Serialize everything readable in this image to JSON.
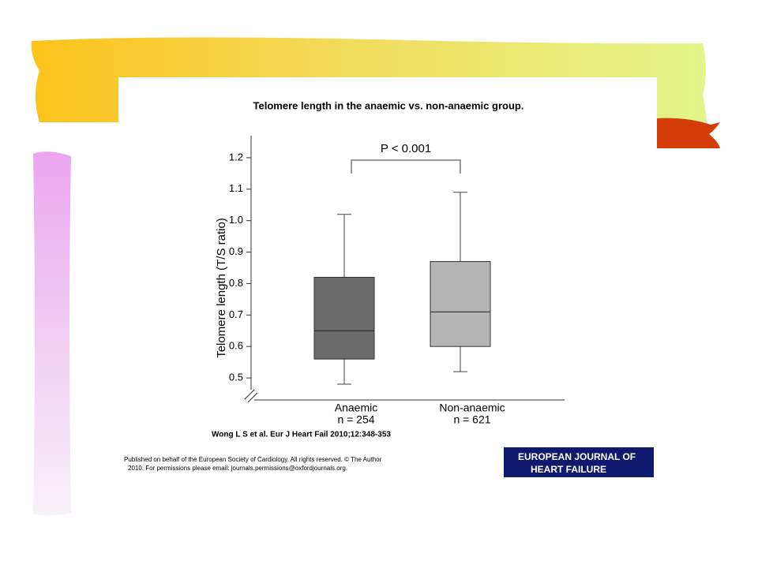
{
  "chart_data": {
    "type": "box",
    "title": "Telomere length in the anaemic vs. non-anaemic group.",
    "ylabel": "Telomere length (T/S ratio)",
    "annotation": "P < 0.001",
    "categories": [
      "Anaemic",
      "Non-anaemic"
    ],
    "n_labels": [
      "n = 254",
      "n = 621"
    ],
    "boxes": [
      {
        "color": "#6b6b6b",
        "min": 0.48,
        "q1": 0.56,
        "median": 0.65,
        "q3": 0.82,
        "max": 1.02
      },
      {
        "color": "#b4b4b4",
        "min": 0.52,
        "q1": 0.6,
        "median": 0.71,
        "q3": 0.87,
        "max": 1.09
      }
    ],
    "ylim": [
      0.43,
      1.27
    ],
    "yticks": [
      0.5,
      0.6,
      0.7,
      0.8,
      0.9,
      {
        "value": 1,
        "label": "1.0"
      },
      1.1,
      1.2
    ]
  },
  "slide": {
    "citation": "Wong L S et al. Eur J Heart Fail 2010;12:348-353",
    "footer": [
      "Published on behalf of the European Society of Cardiology. All rights reserved. © The Author",
      "2010. For permissions please email: journals.permissions@oxfordjournals.org."
    ],
    "logo": [
      "EUROPEAN JOURNAL OF",
      "HEART FAILURE"
    ]
  }
}
